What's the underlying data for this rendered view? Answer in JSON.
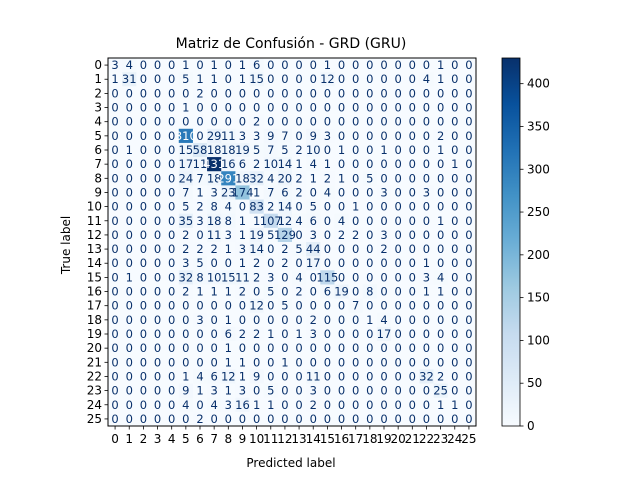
{
  "chart_data": {
    "type": "heatmap",
    "title": "Matriz de Confusión - GRD (GRU)",
    "xlabel": "Predicted label",
    "ylabel": "True label",
    "labels": [
      "0",
      "1",
      "2",
      "3",
      "4",
      "5",
      "6",
      "7",
      "8",
      "9",
      "10",
      "11",
      "12",
      "13",
      "14",
      "15",
      "16",
      "17",
      "18",
      "19",
      "20",
      "21",
      "22",
      "23",
      "24",
      "25"
    ],
    "colorbar": {
      "min": 0,
      "max": 430,
      "ticks": [
        0,
        50,
        100,
        150,
        200,
        250,
        300,
        350,
        400
      ],
      "colormap": "Blues"
    },
    "matrix": [
      [
        3,
        4,
        0,
        0,
        0,
        1,
        0,
        1,
        0,
        1,
        6,
        0,
        0,
        0,
        0,
        1,
        0,
        0,
        0,
        0,
        0,
        0,
        0,
        1,
        0,
        0
      ],
      [
        1,
        31,
        0,
        0,
        0,
        5,
        1,
        1,
        0,
        1,
        15,
        0,
        0,
        0,
        0,
        12,
        0,
        0,
        0,
        0,
        0,
        0,
        4,
        1,
        0,
        0
      ],
      [
        0,
        0,
        0,
        0,
        0,
        0,
        2,
        0,
        0,
        0,
        0,
        0,
        0,
        0,
        0,
        0,
        0,
        0,
        0,
        0,
        0,
        0,
        0,
        0,
        0,
        0
      ],
      [
        0,
        0,
        0,
        0,
        0,
        1,
        0,
        0,
        0,
        0,
        0,
        0,
        0,
        0,
        0,
        0,
        0,
        0,
        0,
        0,
        0,
        0,
        0,
        0,
        0,
        0
      ],
      [
        0,
        0,
        0,
        0,
        0,
        0,
        0,
        0,
        0,
        0,
        2,
        0,
        0,
        0,
        0,
        0,
        0,
        0,
        0,
        0,
        0,
        0,
        0,
        0,
        0,
        0
      ],
      [
        0,
        0,
        0,
        0,
        0,
        310,
        0,
        29,
        11,
        3,
        3,
        9,
        7,
        0,
        9,
        3,
        0,
        0,
        0,
        0,
        0,
        0,
        0,
        2,
        0,
        0
      ],
      [
        0,
        1,
        0,
        0,
        0,
        15,
        58,
        18,
        18,
        19,
        5,
        7,
        5,
        2,
        10,
        0,
        1,
        0,
        0,
        1,
        0,
        0,
        0,
        1,
        0,
        0
      ],
      [
        0,
        0,
        0,
        0,
        0,
        17,
        11,
        431,
        16,
        6,
        2,
        10,
        14,
        1,
        4,
        1,
        0,
        0,
        0,
        0,
        0,
        0,
        0,
        0,
        1,
        0
      ],
      [
        0,
        0,
        0,
        0,
        0,
        24,
        7,
        18,
        291,
        18,
        32,
        4,
        20,
        2,
        1,
        2,
        1,
        0,
        5,
        0,
        0,
        0,
        0,
        0,
        0,
        0
      ],
      [
        0,
        0,
        0,
        0,
        0,
        7,
        1,
        3,
        23,
        174,
        1,
        7,
        6,
        2,
        0,
        4,
        0,
        0,
        0,
        3,
        0,
        0,
        3,
        0,
        0,
        0
      ],
      [
        0,
        0,
        0,
        0,
        0,
        5,
        2,
        8,
        4,
        0,
        83,
        2,
        14,
        0,
        5,
        0,
        0,
        1,
        0,
        0,
        0,
        0,
        0,
        0,
        0,
        0
      ],
      [
        0,
        0,
        0,
        0,
        0,
        35,
        3,
        18,
        8,
        1,
        1,
        107,
        12,
        4,
        6,
        0,
        4,
        0,
        0,
        0,
        0,
        0,
        0,
        1,
        0,
        0
      ],
      [
        0,
        0,
        0,
        0,
        0,
        2,
        0,
        11,
        3,
        1,
        19,
        5,
        129,
        0,
        3,
        0,
        2,
        2,
        0,
        3,
        0,
        0,
        0,
        0,
        0,
        0
      ],
      [
        0,
        0,
        0,
        0,
        0,
        2,
        2,
        2,
        1,
        3,
        14,
        0,
        2,
        5,
        44,
        0,
        0,
        0,
        0,
        2,
        0,
        0,
        0,
        0,
        0,
        0
      ],
      [
        0,
        0,
        0,
        0,
        0,
        3,
        5,
        0,
        0,
        1,
        2,
        0,
        2,
        0,
        17,
        0,
        0,
        0,
        0,
        0,
        0,
        0,
        1,
        0,
        0,
        0
      ],
      [
        0,
        1,
        0,
        0,
        0,
        32,
        8,
        10,
        15,
        11,
        2,
        3,
        0,
        4,
        0,
        115,
        0,
        0,
        0,
        0,
        0,
        0,
        3,
        4,
        0,
        0
      ],
      [
        0,
        0,
        0,
        0,
        0,
        2,
        1,
        1,
        1,
        2,
        0,
        5,
        0,
        2,
        0,
        6,
        19,
        0,
        8,
        0,
        0,
        0,
        1,
        1,
        0,
        0
      ],
      [
        0,
        0,
        0,
        0,
        0,
        0,
        0,
        0,
        0,
        0,
        12,
        0,
        5,
        0,
        0,
        0,
        0,
        7,
        0,
        0,
        0,
        0,
        0,
        0,
        0,
        0
      ],
      [
        0,
        0,
        0,
        0,
        0,
        0,
        3,
        0,
        1,
        0,
        0,
        0,
        0,
        0,
        2,
        0,
        0,
        0,
        1,
        4,
        0,
        0,
        0,
        0,
        0,
        0
      ],
      [
        0,
        0,
        0,
        0,
        0,
        0,
        0,
        0,
        6,
        2,
        2,
        1,
        0,
        1,
        3,
        0,
        0,
        0,
        0,
        17,
        0,
        0,
        0,
        0,
        0,
        0
      ],
      [
        0,
        0,
        0,
        0,
        0,
        0,
        0,
        0,
        1,
        0,
        0,
        0,
        0,
        0,
        0,
        0,
        0,
        0,
        0,
        0,
        0,
        0,
        0,
        0,
        0,
        0
      ],
      [
        0,
        0,
        0,
        0,
        0,
        0,
        0,
        0,
        1,
        1,
        0,
        0,
        1,
        0,
        0,
        0,
        0,
        0,
        0,
        0,
        0,
        0,
        0,
        0,
        0,
        0
      ],
      [
        0,
        0,
        0,
        0,
        0,
        1,
        4,
        6,
        12,
        1,
        9,
        0,
        0,
        0,
        11,
        0,
        0,
        0,
        0,
        0,
        0,
        0,
        32,
        2,
        0,
        0
      ],
      [
        0,
        0,
        0,
        0,
        0,
        9,
        1,
        3,
        1,
        3,
        0,
        5,
        0,
        0,
        3,
        0,
        0,
        0,
        0,
        0,
        0,
        0,
        0,
        25,
        0,
        0
      ],
      [
        0,
        0,
        0,
        0,
        0,
        4,
        0,
        4,
        3,
        16,
        1,
        1,
        0,
        0,
        2,
        0,
        0,
        0,
        0,
        0,
        0,
        0,
        0,
        1,
        1,
        0
      ],
      [
        0,
        0,
        0,
        0,
        0,
        0,
        2,
        0,
        0,
        0,
        0,
        0,
        0,
        0,
        0,
        0,
        0,
        0,
        0,
        0,
        0,
        0,
        0,
        0,
        0,
        0
      ]
    ]
  }
}
